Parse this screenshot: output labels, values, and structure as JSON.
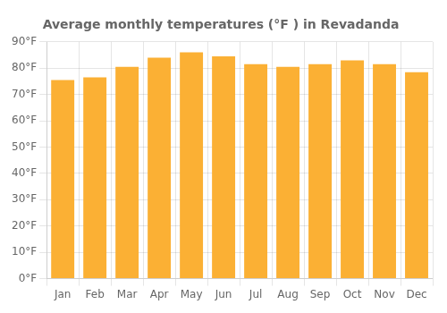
{
  "chart_data": {
    "type": "bar",
    "title": "Average monthly temperatures (°F ) in Revadanda",
    "categories": [
      "Jan",
      "Feb",
      "Mar",
      "Apr",
      "May",
      "Jun",
      "Jul",
      "Aug",
      "Sep",
      "Oct",
      "Nov",
      "Dec"
    ],
    "values": [
      75.5,
      76.5,
      80.5,
      84.0,
      86.0,
      84.5,
      81.5,
      80.5,
      81.5,
      83.0,
      81.5,
      78.5
    ],
    "color": "#FBB034",
    "ylim": [
      0,
      90
    ],
    "yticks": [
      {
        "value": 0,
        "label": "0°F"
      },
      {
        "value": 10,
        "label": "10°F"
      },
      {
        "value": 20,
        "label": "20°F"
      },
      {
        "value": 30,
        "label": "30°F"
      },
      {
        "value": 40,
        "label": "40°F"
      },
      {
        "value": 50,
        "label": "50°F"
      },
      {
        "value": 60,
        "label": "60°F"
      },
      {
        "value": 70,
        "label": "70°F"
      },
      {
        "value": 80,
        "label": "80°F"
      },
      {
        "value": 90,
        "label": "90°F"
      }
    ],
    "grid": true
  }
}
